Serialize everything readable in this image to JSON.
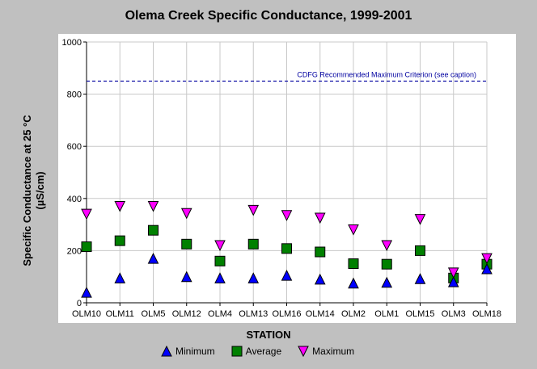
{
  "chart_data": {
    "type": "scatter",
    "title": "Olema Creek Specific Conductance, 1999-2001",
    "xlabel": "STATION",
    "ylabel": "Specific Conductance at 25 °C",
    "ylabel_unit": "(µS/cm)",
    "categories": [
      "OLM10",
      "OLM11",
      "OLM5",
      "OLM12",
      "OLM4",
      "OLM13",
      "OLM16",
      "OLM14",
      "OLM2",
      "OLM1",
      "OLM15",
      "OLM3",
      "OLM18"
    ],
    "ylim": [
      0,
      1000
    ],
    "yticks": [
      "0",
      "200",
      "400",
      "600",
      "800",
      "1000"
    ],
    "grid": true,
    "series": [
      {
        "name": "Minimum",
        "marker": "triangle-up",
        "color": "#0000ff",
        "values": [
          40,
          95,
          170,
          100,
          95,
          95,
          105,
          90,
          75,
          78,
          92,
          80,
          130
        ]
      },
      {
        "name": "Average",
        "marker": "square",
        "color": "#008000",
        "values": [
          215,
          238,
          278,
          225,
          160,
          225,
          208,
          195,
          150,
          148,
          200,
          95,
          148
        ]
      },
      {
        "name": "Maximum",
        "marker": "triangle-down",
        "color": "#ff00ff",
        "values": [
          340,
          370,
          370,
          343,
          220,
          355,
          335,
          325,
          280,
          220,
          320,
          115,
          170
        ]
      }
    ],
    "reference_line": {
      "value": 850,
      "label": "CDFG Recommended Maximum Criterion (see caption)",
      "color": "#0000a0"
    },
    "legend_position": "bottom"
  }
}
